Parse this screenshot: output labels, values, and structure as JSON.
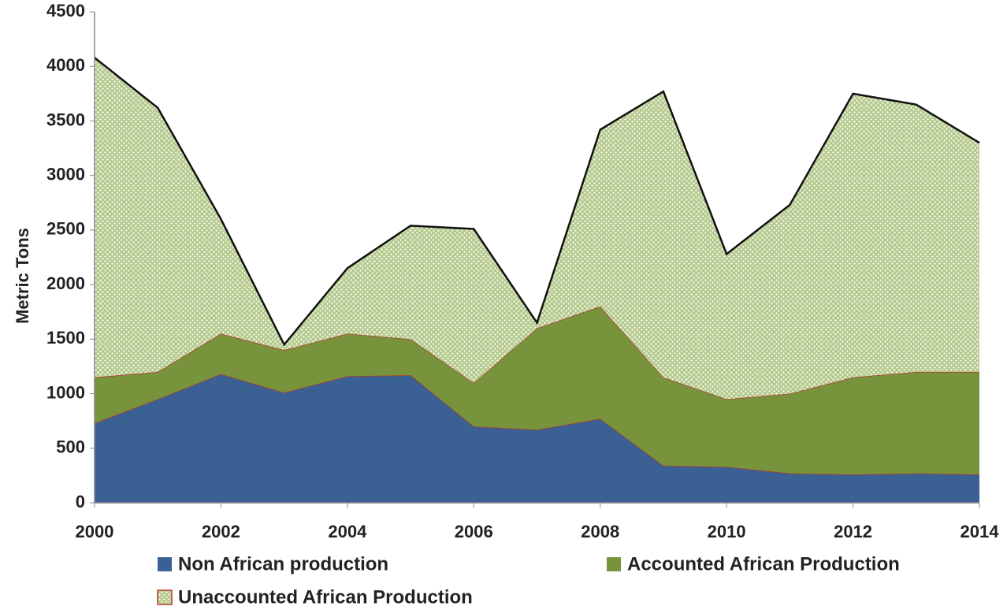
{
  "chart_data": {
    "type": "stacked_area",
    "y_label": "Metric Tons",
    "x": [
      2000,
      2001,
      2002,
      2003,
      2004,
      2005,
      2006,
      2007,
      2008,
      2009,
      2010,
      2011,
      2012,
      2013,
      2014
    ],
    "series": [
      {
        "name": "Non African production",
        "color": "#3a6094",
        "values": [
          730,
          950,
          1180,
          1010,
          1160,
          1170,
          700,
          670,
          770,
          340,
          330,
          270,
          260,
          270,
          260
        ]
      },
      {
        "name": "Accounted African Production",
        "color": "#77933c",
        "values": [
          420,
          250,
          370,
          390,
          390,
          330,
          400,
          930,
          1030,
          810,
          620,
          730,
          890,
          930,
          940
        ]
      },
      {
        "name": "Unaccounted African Production",
        "color": "#c4d6a0",
        "values": [
          2930,
          2420,
          1050,
          50,
          600,
          1040,
          1410,
          50,
          1620,
          2620,
          1330,
          1730,
          2600,
          2450,
          2100
        ]
      }
    ],
    "xlim": [
      2000,
      2014
    ],
    "xticks": [
      2000,
      2002,
      2004,
      2006,
      2008,
      2010,
      2012,
      2014
    ],
    "ylim": [
      0,
      4500
    ],
    "yticks": [
      0,
      500,
      1000,
      1500,
      2000,
      2500,
      3000,
      3500,
      4000,
      4500
    ]
  }
}
